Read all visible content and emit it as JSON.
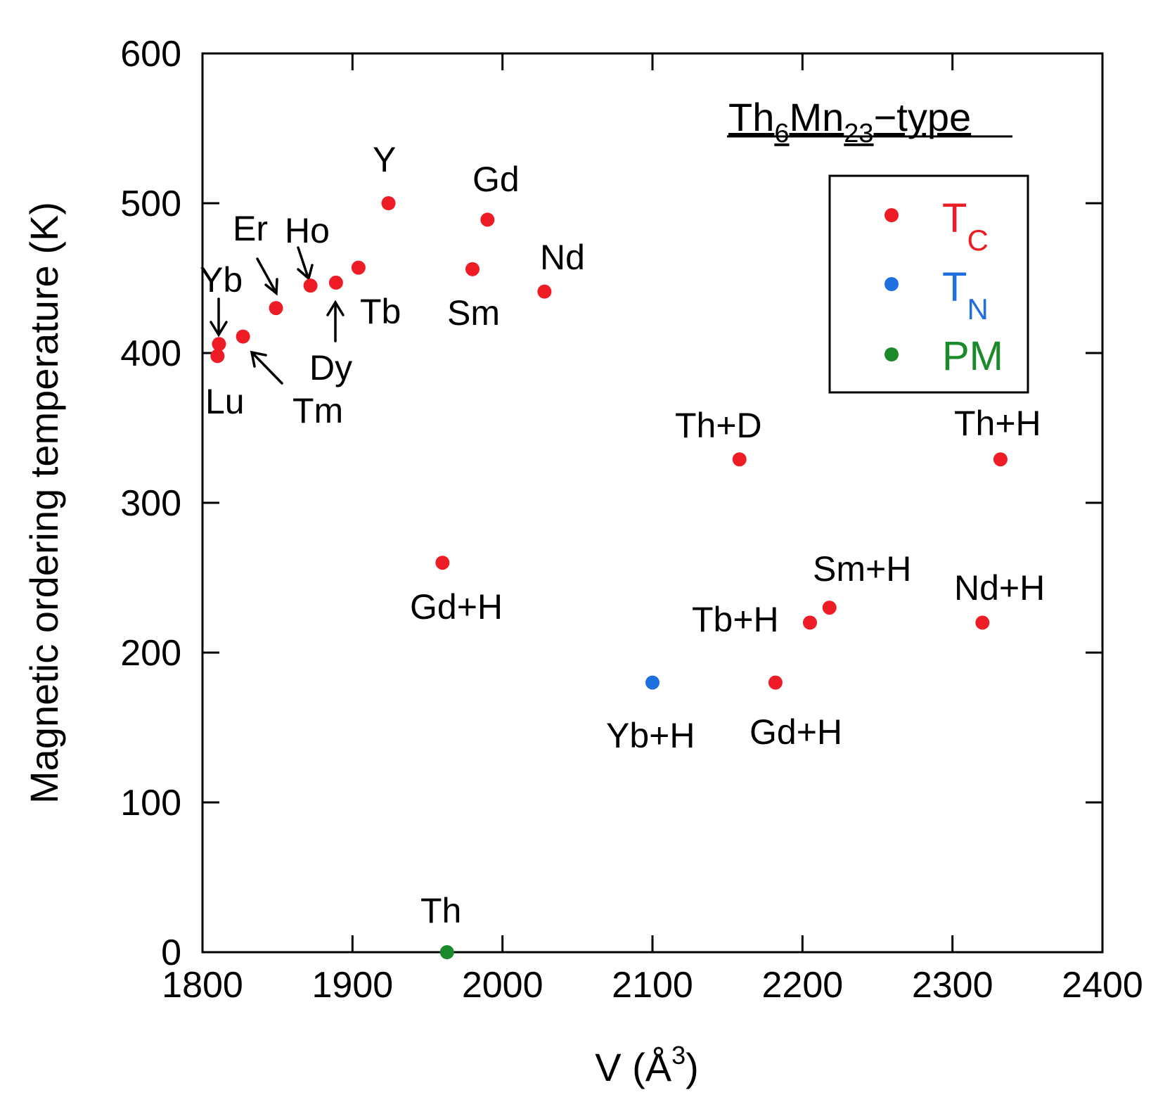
{
  "chart_data": {
    "type": "scatter",
    "title_parts": [
      "Th",
      "6",
      "Mn",
      "23",
      "−type"
    ],
    "xlabel_parts": [
      "V (",
      "Å",
      "3",
      ")"
    ],
    "ylabel": "Magnetic ordering temperature (K)",
    "xlim": [
      1800,
      2400
    ],
    "ylim": [
      0,
      600
    ],
    "xticks": [
      1800,
      1900,
      2000,
      2100,
      2200,
      2300,
      2400
    ],
    "yticks": [
      0,
      100,
      200,
      300,
      400,
      500,
      600
    ],
    "x_tick_labels": [
      "1800",
      "1900",
      "2000",
      "2100",
      "2200",
      "2300",
      "2400"
    ],
    "y_tick_labels": [
      "0",
      "100",
      "200",
      "300",
      "400",
      "500",
      "600"
    ],
    "colors": {
      "TC": "#ee1c24",
      "TN": "#1f6fe0",
      "PM": "#1b8a2a"
    },
    "legend": {
      "position": "upper-right",
      "entries": [
        {
          "key": "TC",
          "main": "T",
          "sub": "C"
        },
        {
          "key": "TN",
          "main": "T",
          "sub": "N"
        },
        {
          "key": "PM",
          "main": "PM",
          "sub": ""
        }
      ]
    },
    "points": [
      {
        "label": "Lu",
        "x": 1810,
        "y": 398,
        "type": "TC"
      },
      {
        "label": "Yb",
        "x": 1811,
        "y": 406,
        "type": "TC"
      },
      {
        "label": "Tm",
        "x": 1827,
        "y": 411,
        "type": "TC"
      },
      {
        "label": "Er",
        "x": 1849,
        "y": 430,
        "type": "TC"
      },
      {
        "label": "Ho",
        "x": 1872,
        "y": 445,
        "type": "TC"
      },
      {
        "label": "Dy",
        "x": 1889,
        "y": 447,
        "type": "TC"
      },
      {
        "label": "Tb",
        "x": 1904,
        "y": 457,
        "type": "TC"
      },
      {
        "label": "Y",
        "x": 1924,
        "y": 500,
        "type": "TC"
      },
      {
        "label": "Sm",
        "x": 1980,
        "y": 456,
        "type": "TC"
      },
      {
        "label": "Gd",
        "x": 1990,
        "y": 489,
        "type": "TC"
      },
      {
        "label": "Nd",
        "x": 2028,
        "y": 441,
        "type": "TC"
      },
      {
        "label": "Gd+H",
        "x": 1960,
        "y": 260,
        "type": "TC"
      },
      {
        "label": "Th",
        "x": 1963,
        "y": 0,
        "type": "PM"
      },
      {
        "label": "Yb+H",
        "x": 2100,
        "y": 180,
        "type": "TN"
      },
      {
        "label": "Th+D",
        "x": 2158,
        "y": 329,
        "type": "TC"
      },
      {
        "label": "Gd+H",
        "x": 2182,
        "y": 180,
        "type": "TC"
      },
      {
        "label": "Tb+H",
        "x": 2205,
        "y": 220,
        "type": "TC"
      },
      {
        "label": "Sm+H",
        "x": 2218,
        "y": 230,
        "type": "TC"
      },
      {
        "label": "Nd+H",
        "x": 2320,
        "y": 220,
        "type": "TC"
      },
      {
        "label": "Th+H",
        "x": 2332,
        "y": 329,
        "type": "TC"
      }
    ]
  }
}
